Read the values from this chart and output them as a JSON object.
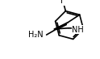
{
  "background_color": "#ffffff",
  "bond_color": "#000000",
  "text_color": "#000000",
  "figsize": [
    1.24,
    0.73
  ],
  "dpi": 100,
  "lw": 1.2,
  "font_size": 7.0,
  "xlim": [
    0,
    124
  ],
  "ylim": [
    0,
    73
  ]
}
